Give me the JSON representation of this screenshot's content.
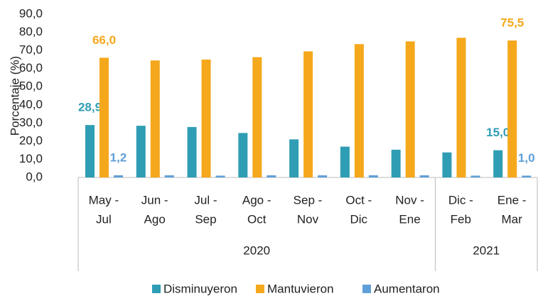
{
  "chart_data": {
    "type": "bar",
    "y_label": "Porcentaje (%)",
    "categories": [
      [
        "May -",
        "Jul"
      ],
      [
        "Jun -",
        "Ago"
      ],
      [
        "Jul -",
        "Sep"
      ],
      [
        "Ago -",
        "Oct"
      ],
      [
        "Sep -",
        "Nov"
      ],
      [
        "Oct -",
        "Dic"
      ],
      [
        "Nov -",
        "Ene"
      ],
      [
        "Dic -",
        "Feb"
      ],
      [
        "Ene -",
        "Mar"
      ]
    ],
    "groups": [
      {
        "label": "2020",
        "count": 7
      },
      {
        "label": "2021",
        "count": 2
      }
    ],
    "series": [
      {
        "name": "Disminuyeron",
        "color": "#2f9db4",
        "values": [
          28.9,
          28.5,
          27.8,
          24.5,
          21.0,
          17.0,
          15.3,
          13.8,
          15.0
        ],
        "value_labels": [
          "28,9",
          null,
          null,
          null,
          null,
          null,
          null,
          null,
          "15,0"
        ]
      },
      {
        "name": "Mantuvieron",
        "color": "#f5a81c",
        "values": [
          66.0,
          64.5,
          65.0,
          66.3,
          69.5,
          73.5,
          75.0,
          77.0,
          75.5
        ],
        "value_labels": [
          "66,0",
          null,
          null,
          null,
          null,
          null,
          null,
          null,
          "75,5"
        ]
      },
      {
        "name": "Aumentaron",
        "color": "#5f9fd8",
        "values": [
          1.2,
          1.2,
          1.0,
          1.2,
          1.2,
          1.2,
          1.2,
          1.0,
          1.0
        ],
        "value_labels": [
          "1,2",
          null,
          null,
          null,
          null,
          null,
          null,
          null,
          "1,0"
        ]
      }
    ],
    "ylim": [
      0,
      90
    ],
    "yticks": [
      {
        "value": 0,
        "label": "0,0"
      },
      {
        "value": 10,
        "label": "10,0"
      },
      {
        "value": 20,
        "label": "20,0"
      },
      {
        "value": 30,
        "label": "30,0"
      },
      {
        "value": 40,
        "label": "40,0"
      },
      {
        "value": 50,
        "label": "50,0"
      },
      {
        "value": 60,
        "label": "60,0"
      },
      {
        "value": 70,
        "label": "70,0"
      },
      {
        "value": 80,
        "label": "80,0"
      },
      {
        "value": 90,
        "label": "90,0"
      }
    ],
    "legend": "bottom"
  }
}
